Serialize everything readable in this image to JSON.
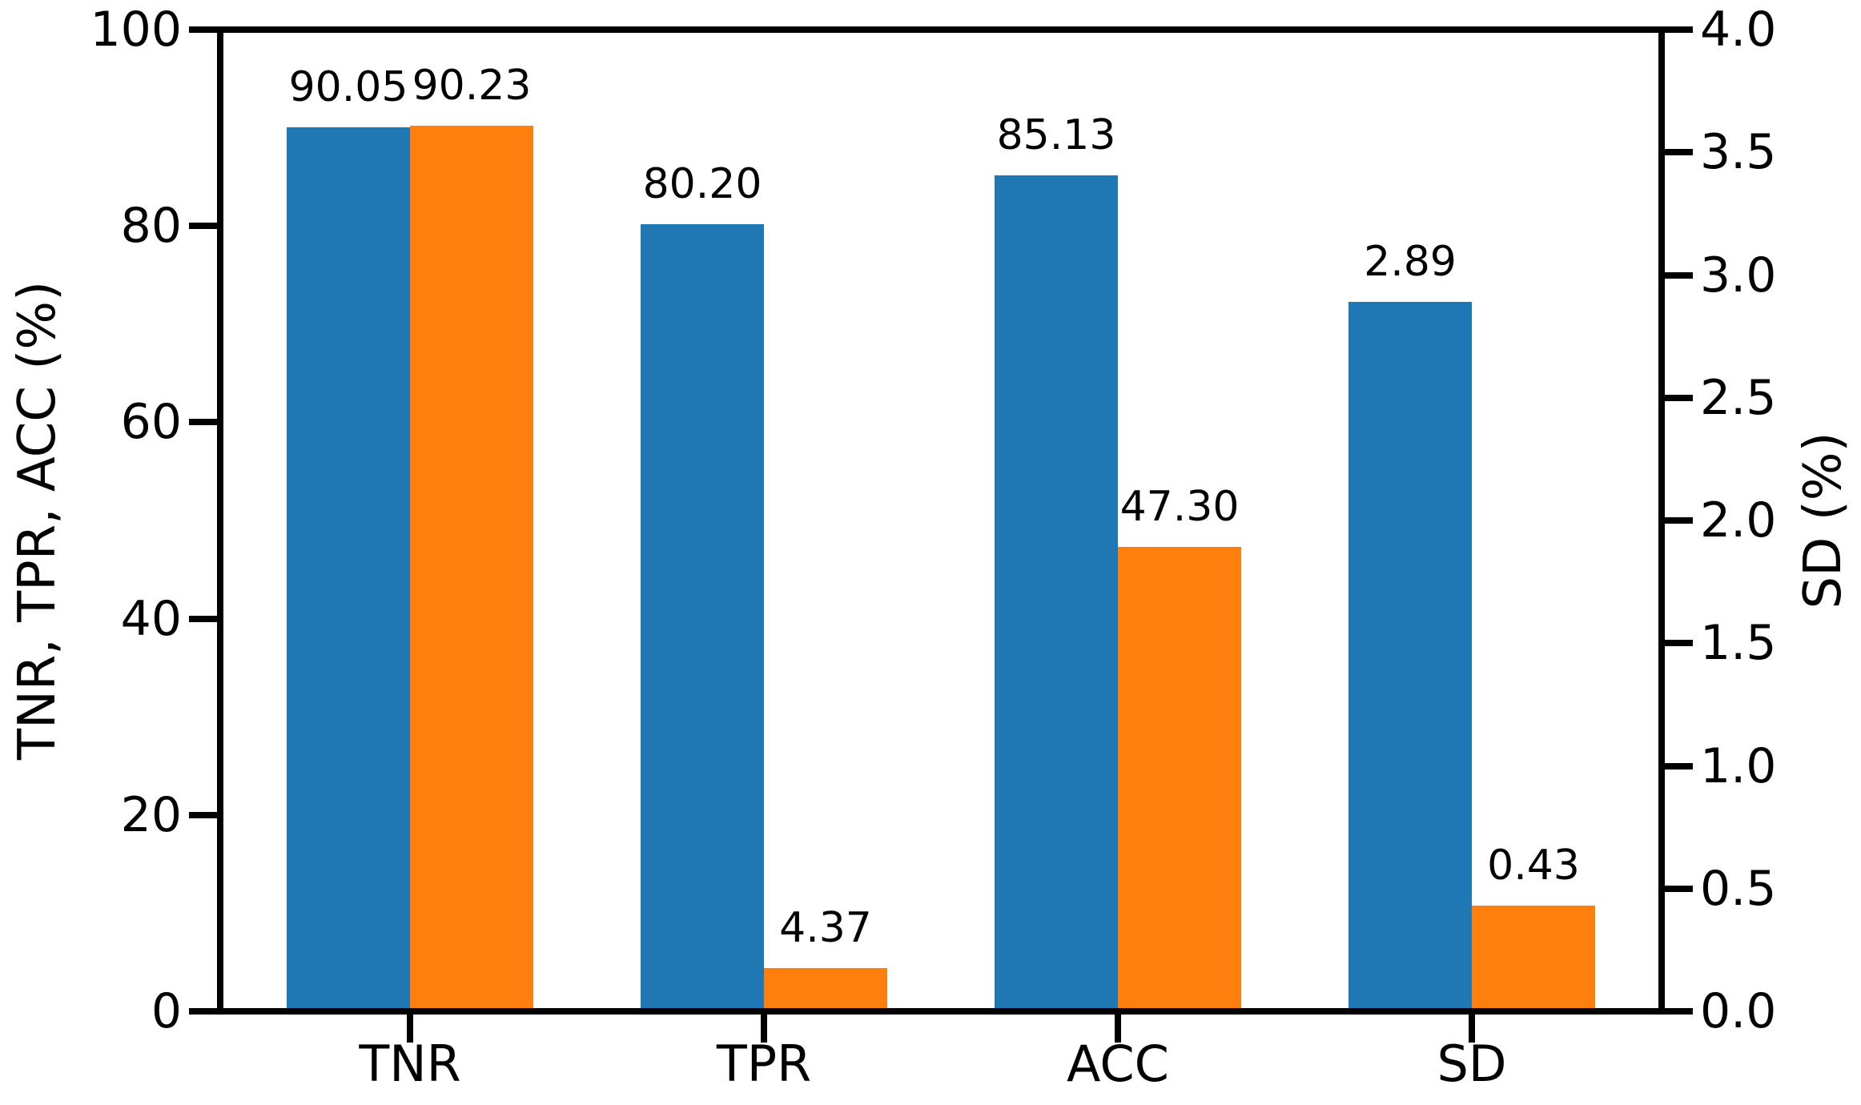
{
  "chart_data": {
    "type": "bar",
    "title": "",
    "categories": [
      "TNR",
      "TPR",
      "ACC",
      "SD"
    ],
    "series": [
      {
        "name": "blue",
        "color": "#1f77b4",
        "values": [
          90.05,
          80.2,
          85.13,
          2.89
        ],
        "labels": [
          "90.05",
          "80.20",
          "85.13",
          "2.89"
        ]
      },
      {
        "name": "orange",
        "color": "#ff7f0e",
        "values": [
          90.23,
          4.37,
          47.3,
          0.43
        ],
        "labels": [
          "90.23",
          "4.37",
          "47.30",
          "0.43"
        ]
      }
    ],
    "category_scale": [
      "left",
      "left",
      "left",
      "right"
    ],
    "left_axis": {
      "label": "TNR, TPR, ACC (%)",
      "min": 0,
      "max": 100,
      "tick_values": [
        0,
        20,
        40,
        60,
        80,
        100
      ],
      "tick_labels": [
        "0",
        "20",
        "40",
        "60",
        "80",
        "100"
      ]
    },
    "right_axis": {
      "label": "SD (%)",
      "min": 0,
      "max": 4.0,
      "tick_values": [
        0,
        0.5,
        1.0,
        1.5,
        2.0,
        2.5,
        3.0,
        3.5,
        4.0
      ],
      "tick_labels": [
        "0.0",
        "0.5",
        "1.0",
        "1.5",
        "2.0",
        "2.5",
        "3.0",
        "3.5",
        "4.0"
      ]
    },
    "grid": false,
    "legend": "none",
    "bar_value_labels_shown": true
  },
  "colors": {
    "bar_blue": "#1f77b4",
    "bar_orange": "#ff7f0e",
    "axis": "#000000",
    "background": "#ffffff"
  }
}
